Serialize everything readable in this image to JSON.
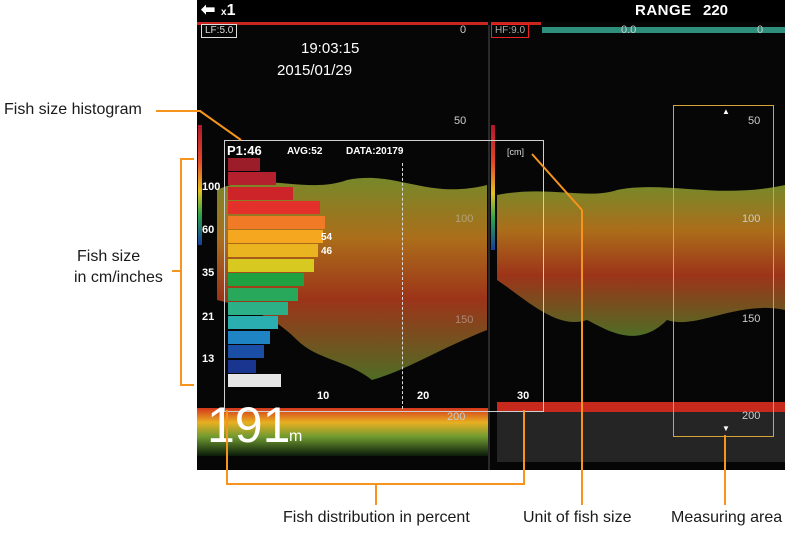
{
  "topbar": {
    "back_icon": "⬅",
    "zoom_prefix": "x",
    "zoom_value": "1",
    "range_label": "RANGE",
    "range_value": "220"
  },
  "lf": {
    "label": "LF:5.0",
    "scale_zero": "0"
  },
  "hf": {
    "label": "HF:9.0",
    "offset": "0.0",
    "scale_zero": "0"
  },
  "clock": {
    "time": "19:03:15",
    "date": "2015/01/29"
  },
  "left_scale": [
    "50",
    "200"
  ],
  "right_scale": [
    "50",
    "100",
    "150",
    "200"
  ],
  "mid_scale": [
    "100",
    "150"
  ],
  "depth": {
    "value": "191",
    "unit": "m"
  },
  "histogram": {
    "p1": "P1:46",
    "avg": "AVG:52",
    "data": "DATA:20179",
    "unit": "[cm]",
    "y_labels": [
      "100",
      "60",
      "35",
      "21",
      "13"
    ],
    "x_labels": [
      "10",
      "20",
      "30"
    ],
    "bar_labels": [
      "54",
      "46"
    ],
    "bars": [
      {
        "value": 3.2,
        "color": "#9b1d2a"
      },
      {
        "value": 4.8,
        "color": "#b4202e"
      },
      {
        "value": 6.5,
        "color": "#cc2428"
      },
      {
        "value": 9.2,
        "color": "#e4302a"
      },
      {
        "value": 9.7,
        "color": "#f07a26"
      },
      {
        "value": 9.5,
        "color": "#f5a81f"
      },
      {
        "value": 9.0,
        "color": "#e9b420"
      },
      {
        "value": 8.6,
        "color": "#d7c91f"
      },
      {
        "value": 7.6,
        "color": "#1fa041"
      },
      {
        "value": 7.0,
        "color": "#27a85a"
      },
      {
        "value": 6.0,
        "color": "#2bb087"
      },
      {
        "value": 5.0,
        "color": "#2aaeb0"
      },
      {
        "value": 4.2,
        "color": "#1f84c4"
      },
      {
        "value": 3.6,
        "color": "#1a4fa5"
      },
      {
        "value": 2.8,
        "color": "#1a3590"
      },
      {
        "value": 5.3,
        "color": "#e6e6e6"
      }
    ]
  },
  "callouts": {
    "histogram": "Fish size histogram",
    "size_line1": "Fish size",
    "size_line2": "in cm/inches",
    "distribution": "Fish distribution in percent",
    "unit": "Unit of fish size",
    "area": "Measuring area"
  },
  "colors": {
    "accent": "#f7941d",
    "range_bar": "#c8261e",
    "measure_box": "#d7a43a"
  }
}
